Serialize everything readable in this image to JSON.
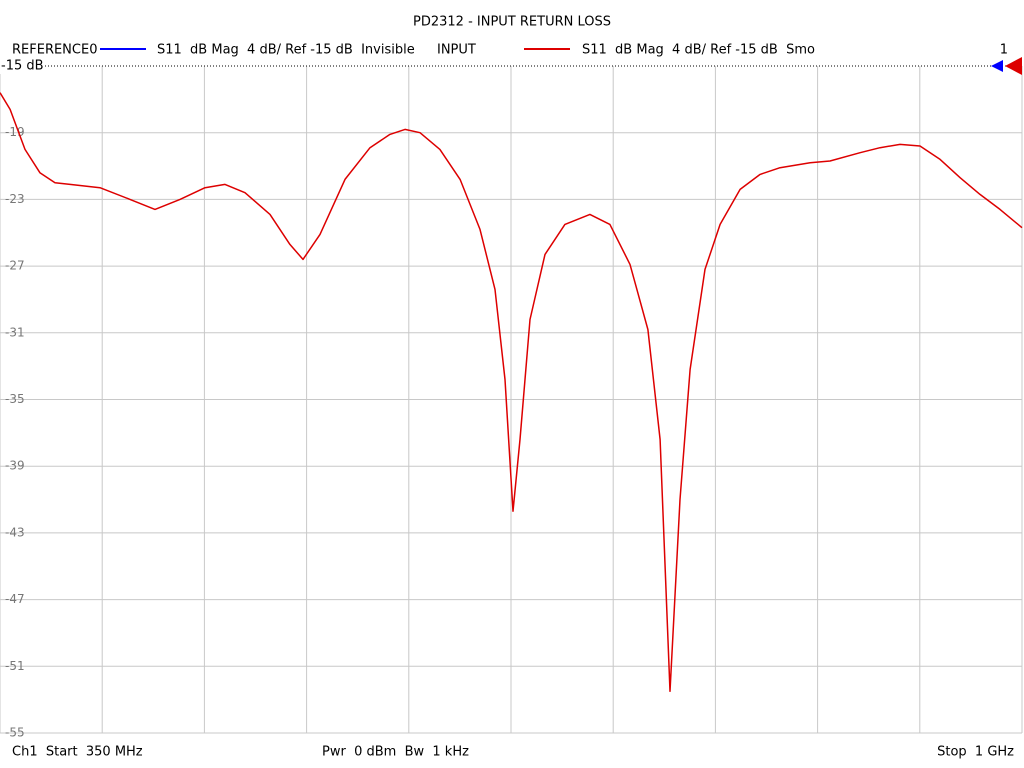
{
  "chart_data": {
    "type": "line",
    "title": "PD2312 - INPUT RETURN LOSS",
    "reference_trace": {
      "name": "REFERENCE0",
      "color": "#0000ff",
      "info": "S11  dB Mag  4 dB/ Ref -15 dB  Invisible"
    },
    "series": [
      {
        "name": "INPUT",
        "color": "#dd0000",
        "info": "S11  dB Mag  4 dB/ Ref -15 dB  Smo",
        "values": [
          -16.6,
          -17.6,
          -20.0,
          -21.4,
          -22.0,
          -22.1,
          -22.3,
          -23.0,
          -23.6,
          -23.0,
          -22.3,
          -22.1,
          -22.6,
          -23.9,
          -25.7,
          -26.6,
          -25.1,
          -21.8,
          -19.9,
          -19.1,
          -18.8,
          -19.0,
          -20.0,
          -21.8,
          -24.8,
          -28.4,
          -33.8,
          -41.7,
          -37.4,
          -30.2,
          -26.3,
          -24.5,
          -23.9,
          -24.5,
          -26.9,
          -30.8,
          -37.4,
          -52.5,
          -41.0,
          -33.2,
          -27.2,
          -24.5,
          -22.4,
          -21.5,
          -21.1,
          -20.8,
          -20.7,
          -20.2,
          -19.9,
          -19.7,
          -19.8,
          -20.6,
          -21.7,
          -22.7,
          -23.6,
          -24.7
        ]
      }
    ],
    "x": [
      350,
      356.4,
      365.9,
      375.4,
      385,
      394.5,
      413.6,
      432.7,
      448.6,
      464.5,
      480.4,
      493.1,
      505.8,
      521.7,
      534.4,
      542.7,
      553.5,
      569.4,
      585.3,
      598.0,
      607.6,
      617.1,
      629.8,
      642.6,
      655.3,
      664.8,
      671.2,
      676.3,
      680.7,
      687.1,
      696.6,
      709.3,
      725.2,
      737.9,
      750.7,
      762.1,
      769.8,
      776.1,
      782.5,
      788.9,
      798.4,
      808.0,
      820.7,
      833.4,
      846.1,
      865.2,
      877.9,
      897.0,
      909.7,
      922.4,
      935.1,
      947.9,
      960.6,
      973.3,
      986.0,
      1000
    ],
    "xlim": [
      350,
      1000
    ],
    "xgrid": [
      350,
      415,
      480,
      545,
      610,
      675,
      740,
      805,
      870,
      935,
      1000
    ],
    "ylim": [
      -55,
      -15
    ],
    "yticks": [
      -15,
      -19,
      -23,
      -27,
      -31,
      -35,
      -39,
      -43,
      -47,
      -51,
      -55
    ],
    "grid": true,
    "ref_label": "-15 dB",
    "ref_number": "1",
    "footer": {
      "start": "Ch1  Start  350 MHz",
      "power": "Pwr  0 dBm  Bw  1 kHz",
      "stop": "Stop  1 GHz"
    }
  }
}
